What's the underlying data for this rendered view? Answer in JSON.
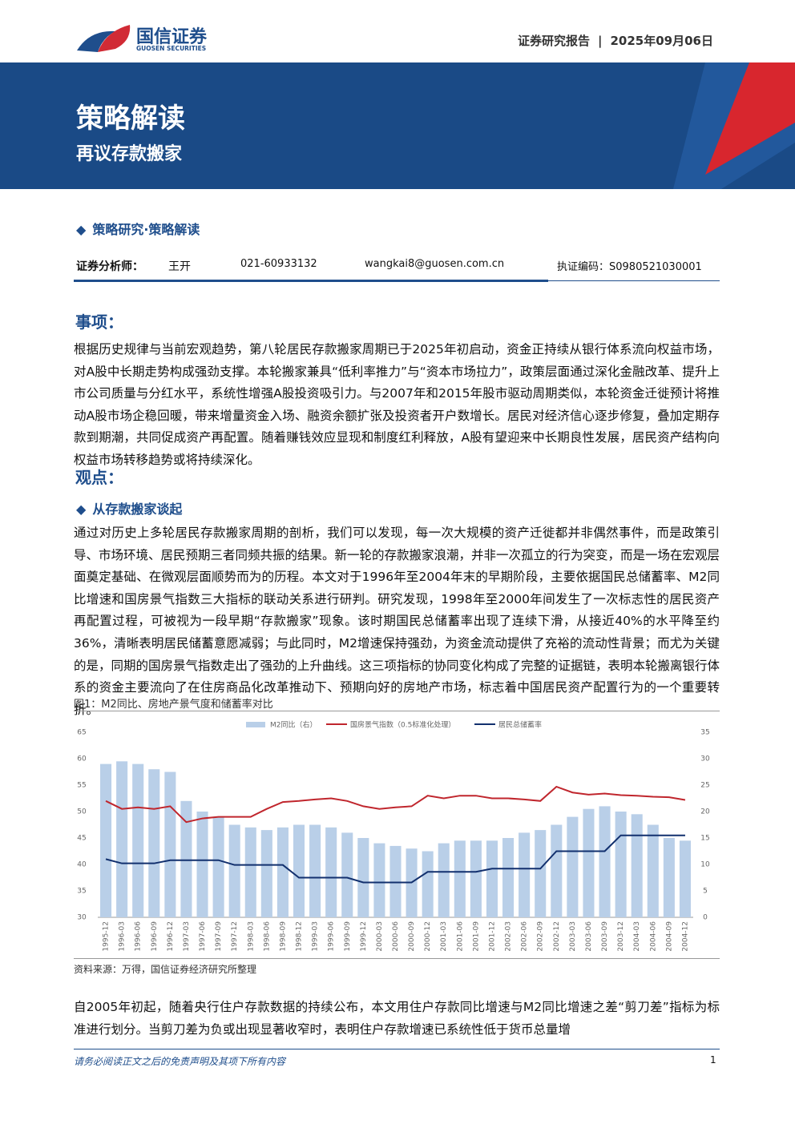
{
  "header": {
    "brand": "国信证券",
    "brand_en": "GUOSEN SECURITIES",
    "report_type": "证券研究报告",
    "date": "2025年09月06日"
  },
  "banner": {
    "title": "策略解读",
    "subtitle": "再议存款搬家"
  },
  "category": "策略研究·策略解读",
  "analyst": {
    "role": "证券分析师：",
    "name": "王开",
    "phone": "021-60933132",
    "email": "wangkai8@guosen.com.cn",
    "license": "执证编码：S0980521030001"
  },
  "sections": [
    {
      "heading": "事项：",
      "paragraphs": [
        "根据历史规律与当前宏观趋势，第八轮居民存款搬家周期已于2025年初启动，资金正持续从银行体系流向权益市场，对A股中长期走势构成强劲支撑。本轮搬家兼具“低利率推力”与“资本市场拉力”，政策层面通过深化金融改革、提升上市公司质量与分红水平，系统性增强A股投资吸引力。与2007年和2015年股市驱动周期类似，本轮资金迁徙预计将推动A股市场企稳回暖，带来增量资金入场、融资余额扩张及投资者开户数增长。居民对经济信心逐步修复，叠加定期存款到期潮，共同促成资产再配置。随着赚钱效应显现和制度红利释放，A股有望迎来中长期良性发展，居民资产结构向权益市场转移趋势或将持续深化。"
      ]
    },
    {
      "heading": "观点：",
      "subheading": "从存款搬家谈起",
      "paragraphs": [
        "通过对历史上多轮居民存款搬家周期的剖析，我们可以发现，每一次大规模的资产迁徙都并非偶然事件，而是政策引导、市场环境、居民预期三者同频共振的结果。新一轮的存款搬家浪潮，并非一次孤立的行为突变，而是一场在宏观层面奠定基础、在微观层面顺势而为的历程。本文对于1996年至2004年末的早期阶段，主要依据国民总储蓄率、M2同比增速和国房景气指数三大指标的联动关系进行研判。研究发现，1998年至2000年间发生了一次标志性的居民资产再配置过程，可被视为一段早期“存款搬家”现象。该时期国民总储蓄率出现了连续下滑，从接近40%的水平降至约36%，清晰表明居民储蓄意愿减弱；与此同时，M2增速保持强劲，为资金流动提供了充裕的流动性背景；而尤为关键的是，同期的国房景气指数走出了强劲的上升曲线。这三项指标的协同变化构成了完整的证据链，表明本轮搬离银行体系的资金主要流向了在住房商品化改革推动下、预期向好的房地产市场，标志着中国居民资产配置行为的一个重要转折。",
        "自2005年初起，随着央行住户存款数据的持续公布，本文用住户存款同比增速与M2同比增速之差“剪刀差”指标为标准进行划分。当剪刀差为负或出现显著收窄时，表明住户存款增速已系统性低于货币总量增"
      ]
    }
  ],
  "figure": {
    "caption": "图1：M2同比、房地产景气度和储蓄率对比",
    "source": "资料来源：万得，国信证券经济研究所整理"
  },
  "chart_data": {
    "type": "combo",
    "categories": [
      "1995-12",
      "1996-03",
      "1996-06",
      "1996-09",
      "1996-12",
      "1997-03",
      "1997-06",
      "1997-09",
      "1997-12",
      "1998-03",
      "1998-06",
      "1998-09",
      "1998-12",
      "1999-03",
      "1999-06",
      "1999-09",
      "1999-12",
      "2000-03",
      "2000-06",
      "2000-09",
      "2000-12",
      "2001-03",
      "2001-06",
      "2001-09",
      "2001-12",
      "2002-03",
      "2002-06",
      "2002-09",
      "2002-12",
      "2003-03",
      "2003-06",
      "2003-09",
      "2003-12",
      "2004-03",
      "2004-06",
      "2004-09",
      "2004-12"
    ],
    "series": [
      {
        "name": "M2同比（右）",
        "kind": "bar",
        "axis": "y2",
        "color": "#b9cfe8",
        "values": [
          29,
          29.5,
          29,
          28,
          27.5,
          22,
          20,
          19,
          17.5,
          17,
          16.5,
          17,
          17.5,
          17.5,
          17,
          16,
          15,
          14,
          13.5,
          13,
          12.5,
          14,
          14.5,
          14.5,
          14.5,
          15,
          16,
          16.5,
          17.5,
          19,
          20.5,
          21,
          20,
          19.5,
          17.5,
          15,
          14.5
        ]
      },
      {
        "name": "国房景气指数（0.5标准化处理）",
        "kind": "line",
        "color": "#c0262d",
        "values": [
          52,
          50.5,
          50.8,
          50.5,
          51,
          48,
          48.7,
          49,
          49,
          49,
          50.5,
          51.8,
          52,
          52.3,
          52.5,
          52,
          51,
          50.5,
          50.8,
          51,
          53,
          52.5,
          53,
          53,
          52.5,
          52.5,
          52.3,
          52,
          54.7,
          53.6,
          53.2,
          53.4,
          53.1,
          53,
          52.8,
          52.7,
          52.2
        ]
      },
      {
        "name": "居民总储蓄率",
        "kind": "line",
        "color": "#12306e",
        "values": [
          41,
          40.2,
          40.2,
          40.2,
          40.8,
          40.8,
          40.8,
          40.8,
          39.9,
          39.9,
          39.9,
          39.9,
          37.5,
          37.5,
          37.5,
          37.5,
          36.6,
          36.6,
          36.6,
          36.6,
          38.6,
          38.6,
          38.6,
          38.6,
          39.2,
          39.2,
          39.2,
          39.2,
          42.5,
          42.5,
          42.5,
          42.5,
          45.5,
          45.5,
          45.5,
          45.5,
          45.5
        ]
      }
    ],
    "ylim": [
      30,
      65
    ],
    "yticks": [
      30,
      35,
      40,
      45,
      50,
      55,
      60,
      65
    ],
    "y2lim": [
      0,
      35
    ],
    "y2ticks": [
      0,
      5,
      10,
      15,
      20,
      25,
      30,
      35
    ]
  },
  "footer": {
    "disclaimer": "请务必阅读正文之后的免责声明及其项下所有内容",
    "page": 1
  }
}
